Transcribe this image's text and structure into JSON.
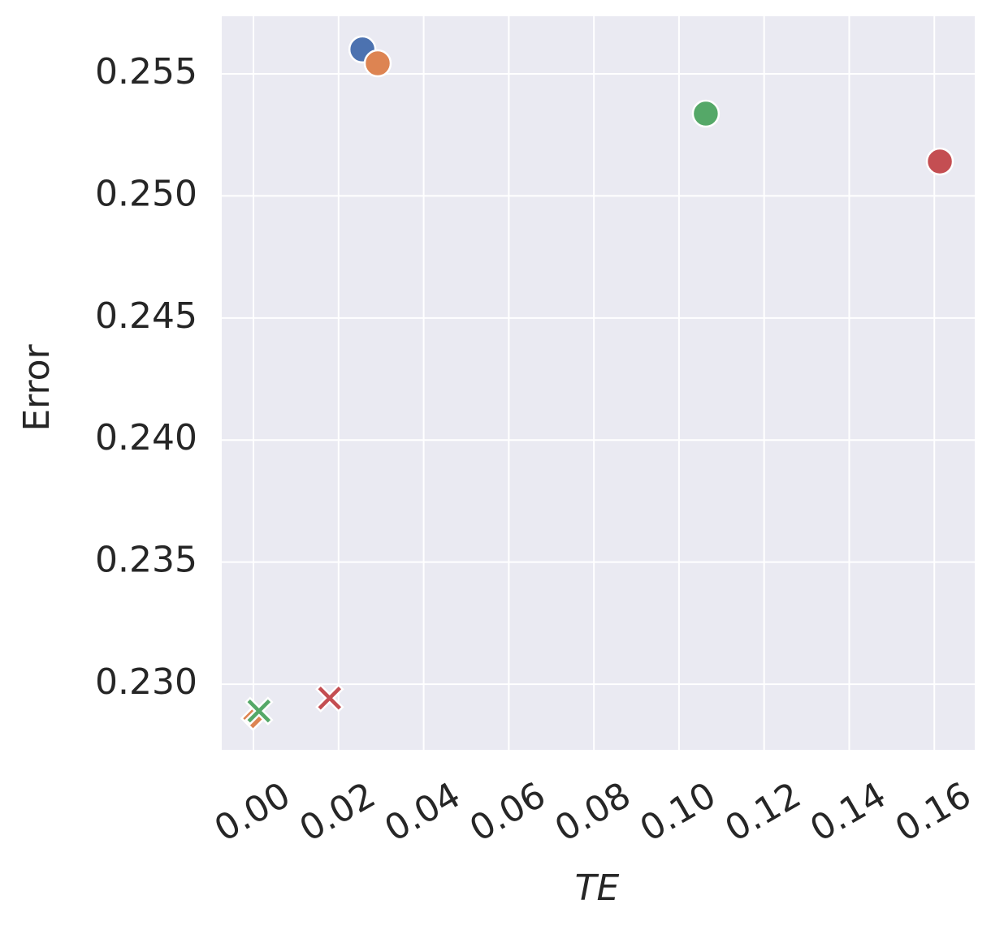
{
  "chart_data": {
    "type": "scatter",
    "x_label": "TE",
    "y_label": "Error",
    "points": [
      {
        "x": 0.0256,
        "y": 0.256,
        "color": "#4c72b0",
        "marker": "circle"
      },
      {
        "x": 0.0292,
        "y": 0.25543,
        "color": "#dd8452",
        "marker": "circle"
      },
      {
        "x": 0.1063,
        "y": 0.25337,
        "color": "#55a868",
        "marker": "circle"
      },
      {
        "x": 0.1613,
        "y": 0.25141,
        "color": "#c44e52",
        "marker": "circle"
      },
      {
        "x": -0.0001,
        "y": 0.2286,
        "color": "#dd8452",
        "marker": "diamond"
      },
      {
        "x": 0.0013,
        "y": 0.2289,
        "color": "#55a868",
        "marker": "x"
      },
      {
        "x": 0.0179,
        "y": 0.22943,
        "color": "#c44e52",
        "marker": "x"
      }
    ],
    "xlim": [
      -0.00745,
      0.1695
    ],
    "ylim": [
      0.22731,
      0.25736
    ],
    "xticks": [
      {
        "value": 0,
        "label": "0.00"
      },
      {
        "value": 0.02,
        "label": "0.02"
      },
      {
        "value": 0.04,
        "label": "0.04"
      },
      {
        "value": 0.06,
        "label": "0.06"
      },
      {
        "value": 0.08,
        "label": "0.08"
      },
      {
        "value": 0.1,
        "label": "0.10"
      },
      {
        "value": 0.12,
        "label": "0.12"
      },
      {
        "value": 0.14,
        "label": "0.14"
      },
      {
        "value": 0.16,
        "label": "0.16"
      }
    ],
    "yticks": [
      {
        "value": 0.23,
        "label": "0.230"
      },
      {
        "value": 0.235,
        "label": "0.235"
      },
      {
        "value": 0.24,
        "label": "0.240"
      },
      {
        "value": 0.245,
        "label": "0.245"
      },
      {
        "value": 0.25,
        "label": "0.250"
      },
      {
        "value": 0.255,
        "label": "0.255"
      }
    ],
    "grid": true
  }
}
